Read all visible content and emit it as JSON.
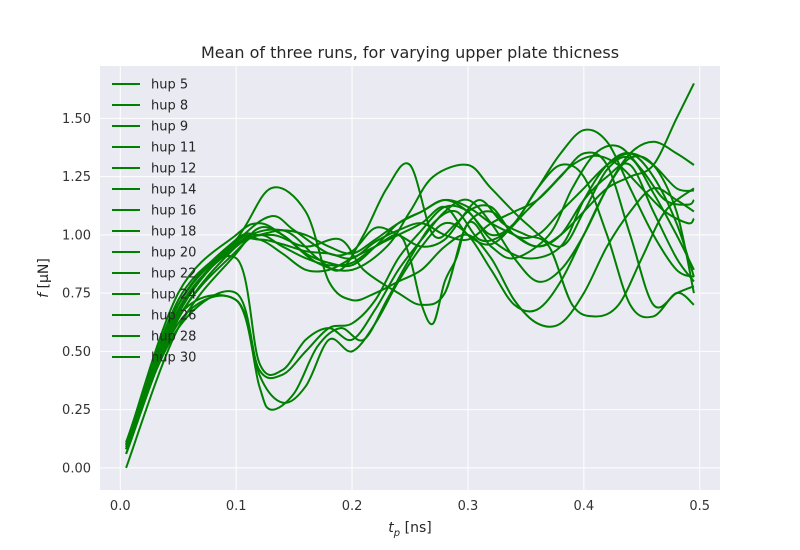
{
  "chart_data": {
    "type": "line",
    "title": "Mean of three runs, for varying upper plate thicness",
    "xlabel_main": "t",
    "xlabel_sub": "p",
    "xlabel_unit": " [ns]",
    "ylabel_var": "f",
    "ylabel_unit": " [μN]",
    "xlim": [
      -0.0175,
      0.5175
    ],
    "ylim": [
      -0.095,
      1.725
    ],
    "x_ticks": [
      0.0,
      0.1,
      0.2,
      0.3,
      0.4,
      0.5
    ],
    "x_tick_labels": [
      "0.0",
      "0.1",
      "0.2",
      "0.3",
      "0.4",
      "0.5"
    ],
    "y_ticks": [
      0.0,
      0.25,
      0.5,
      0.75,
      1.0,
      1.25,
      1.5
    ],
    "y_tick_labels": [
      "0.00",
      "0.25",
      "0.50",
      "0.75",
      "1.00",
      "1.25",
      "1.50"
    ],
    "grid": true,
    "legend_position": "upper-left",
    "colors": {
      "series": "#008000",
      "plot_bg": "#eaeaf2",
      "grid": "#ffffff"
    },
    "series": [
      {
        "name": "hup 5",
        "x": [
          0.005,
          0.05,
          0.1,
          0.12,
          0.14,
          0.17,
          0.2,
          0.23,
          0.25,
          0.27,
          0.3,
          0.32,
          0.35,
          0.38,
          0.4,
          0.42,
          0.44,
          0.46,
          0.48,
          0.495
        ],
        "y": [
          0.1,
          0.75,
          1.0,
          1.05,
          1.0,
          0.88,
          0.85,
          0.95,
          1.1,
          1.25,
          1.3,
          1.2,
          1.05,
          0.95,
          1.1,
          1.28,
          1.33,
          1.18,
          1.0,
          0.85
        ]
      },
      {
        "name": "hup 8",
        "x": [
          0.005,
          0.05,
          0.1,
          0.12,
          0.14,
          0.16,
          0.18,
          0.2,
          0.22,
          0.24,
          0.26,
          0.28,
          0.3,
          0.32,
          0.35,
          0.38,
          0.4,
          0.42,
          0.44,
          0.46,
          0.48,
          0.495
        ],
        "y": [
          0.1,
          0.65,
          0.72,
          0.42,
          0.4,
          0.5,
          0.6,
          0.62,
          0.72,
          0.9,
          1.02,
          1.12,
          1.1,
          0.98,
          0.9,
          0.95,
          1.15,
          1.3,
          1.35,
          1.25,
          1.05,
          0.82
        ]
      },
      {
        "name": "hup 9",
        "x": [
          0.005,
          0.05,
          0.1,
          0.12,
          0.14,
          0.16,
          0.18,
          0.2,
          0.22,
          0.24,
          0.26,
          0.28,
          0.3,
          0.32,
          0.34,
          0.36,
          0.38,
          0.4,
          0.42,
          0.44,
          0.46,
          0.48,
          0.495
        ],
        "y": [
          0.1,
          0.6,
          0.75,
          0.4,
          0.28,
          0.35,
          0.55,
          0.5,
          0.62,
          0.8,
          0.95,
          1.05,
          1.0,
          0.85,
          0.7,
          0.68,
          0.8,
          1.0,
          1.2,
          1.33,
          1.3,
          1.1,
          0.75
        ]
      },
      {
        "name": "hup 11",
        "x": [
          0.005,
          0.05,
          0.1,
          0.12,
          0.14,
          0.16,
          0.18,
          0.2,
          0.22,
          0.24,
          0.26,
          0.28,
          0.3,
          0.32,
          0.34,
          0.36,
          0.38,
          0.4,
          0.42,
          0.44,
          0.46,
          0.48,
          0.495
        ],
        "y": [
          0.11,
          0.7,
          0.9,
          0.45,
          0.42,
          0.55,
          0.6,
          0.55,
          0.68,
          0.85,
          0.98,
          1.1,
          1.15,
          1.05,
          0.9,
          0.8,
          0.85,
          1.0,
          1.2,
          1.35,
          1.4,
          1.35,
          1.3
        ]
      },
      {
        "name": "hup 12",
        "x": [
          0.005,
          0.05,
          0.1,
          0.12,
          0.13,
          0.15,
          0.17,
          0.19,
          0.21,
          0.23,
          0.25,
          0.27,
          0.29,
          0.31,
          0.33,
          0.35,
          0.37,
          0.39,
          0.41,
          0.43,
          0.45,
          0.47,
          0.49,
          0.495
        ],
        "y": [
          0.06,
          0.62,
          0.72,
          0.35,
          0.25,
          0.32,
          0.52,
          0.6,
          0.55,
          0.72,
          0.9,
          1.05,
          1.1,
          0.98,
          1.0,
          1.1,
          1.2,
          1.3,
          1.34,
          1.3,
          1.2,
          1.1,
          1.05,
          1.07
        ]
      },
      {
        "name": "hup 14",
        "x": [
          0.005,
          0.05,
          0.1,
          0.13,
          0.16,
          0.19,
          0.21,
          0.24,
          0.26,
          0.28,
          0.3,
          0.32,
          0.34,
          0.37,
          0.39,
          0.41,
          0.43,
          0.45,
          0.47,
          0.49,
          0.495
        ],
        "y": [
          0.08,
          0.68,
          0.95,
          1.0,
          0.95,
          0.98,
          0.85,
          0.75,
          0.7,
          0.75,
          1.05,
          0.95,
          0.9,
          1.0,
          1.2,
          1.35,
          1.38,
          1.28,
          1.15,
          1.13,
          1.15
        ]
      },
      {
        "name": "hup 16",
        "x": [
          0.005,
          0.05,
          0.1,
          0.13,
          0.15,
          0.18,
          0.2,
          0.22,
          0.24,
          0.26,
          0.28,
          0.3,
          0.32,
          0.34,
          0.36,
          0.38,
          0.4,
          0.42,
          0.44,
          0.46,
          0.48,
          0.495
        ],
        "y": [
          0.09,
          0.7,
          0.97,
          1.08,
          1.02,
          0.92,
          0.93,
          1.03,
          1.0,
          0.95,
          0.98,
          1.1,
          1.12,
          1.0,
          1.0,
          1.1,
          1.2,
          1.3,
          1.35,
          1.3,
          1.2,
          1.19
        ]
      },
      {
        "name": "hup 18",
        "x": [
          0.005,
          0.05,
          0.1,
          0.13,
          0.16,
          0.18,
          0.2,
          0.22,
          0.24,
          0.26,
          0.28,
          0.3,
          0.32,
          0.34,
          0.36,
          0.38,
          0.4,
          0.42,
          0.44,
          0.46,
          0.48,
          0.495
        ],
        "y": [
          0.1,
          0.72,
          0.98,
          1.2,
          1.1,
          0.8,
          0.72,
          0.75,
          0.8,
          0.85,
          0.95,
          1.0,
          0.9,
          0.72,
          0.62,
          0.62,
          0.75,
          0.95,
          1.1,
          1.2,
          1.15,
          1.1
        ]
      },
      {
        "name": "hup 20",
        "x": [
          0.005,
          0.05,
          0.1,
          0.12,
          0.14,
          0.16,
          0.18,
          0.2,
          0.22,
          0.24,
          0.26,
          0.28,
          0.3,
          0.32,
          0.34,
          0.36,
          0.38,
          0.4,
          0.42,
          0.44,
          0.46,
          0.48,
          0.495
        ],
        "y": [
          0.06,
          0.64,
          0.93,
          1.0,
          0.95,
          0.9,
          0.87,
          0.88,
          0.95,
          1.0,
          1.05,
          1.12,
          1.0,
          0.96,
          1.05,
          1.2,
          1.35,
          1.45,
          1.4,
          1.2,
          1.0,
          0.85,
          0.82
        ]
      },
      {
        "name": "hup 22",
        "x": [
          0.005,
          0.05,
          0.1,
          0.12,
          0.14,
          0.16,
          0.18,
          0.2,
          0.22,
          0.24,
          0.26,
          0.28,
          0.3,
          0.32,
          0.34,
          0.36,
          0.38,
          0.4,
          0.42,
          0.44,
          0.46,
          0.48,
          0.495
        ],
        "y": [
          0.0,
          0.6,
          0.92,
          1.03,
          1.0,
          0.92,
          0.88,
          0.87,
          0.95,
          1.05,
          1.1,
          1.15,
          1.1,
          1.0,
          1.05,
          1.2,
          1.3,
          1.25,
          1.0,
          0.7,
          0.65,
          0.75,
          0.7
        ]
      },
      {
        "name": "hup 24",
        "x": [
          0.005,
          0.05,
          0.1,
          0.14,
          0.17,
          0.19,
          0.21,
          0.23,
          0.25,
          0.27,
          0.29,
          0.31,
          0.33,
          0.35,
          0.37,
          0.39,
          0.41,
          0.43,
          0.45,
          0.47,
          0.495
        ],
        "y": [
          0.08,
          0.66,
          0.96,
          1.02,
          0.9,
          0.85,
          1.0,
          1.2,
          1.3,
          1.0,
          1.05,
          1.15,
          1.05,
          1.0,
          0.95,
          0.7,
          0.65,
          0.7,
          0.9,
          1.1,
          1.2
        ]
      },
      {
        "name": "hup 26",
        "x": [
          0.005,
          0.05,
          0.1,
          0.12,
          0.14,
          0.16,
          0.18,
          0.2,
          0.22,
          0.24,
          0.26,
          0.28,
          0.3,
          0.32,
          0.34,
          0.36,
          0.38,
          0.4,
          0.42,
          0.44,
          0.46,
          0.48,
          0.495
        ],
        "y": [
          0.08,
          0.64,
          0.95,
          0.98,
          0.96,
          0.93,
          0.92,
          0.9,
          0.97,
          1.02,
          1.05,
          1.0,
          0.98,
          1.05,
          1.1,
          1.15,
          1.25,
          1.35,
          1.3,
          1.0,
          0.7,
          0.75,
          0.78
        ]
      },
      {
        "name": "hup 28",
        "x": [
          0.005,
          0.05,
          0.1,
          0.12,
          0.14,
          0.16,
          0.18,
          0.2,
          0.22,
          0.24,
          0.25,
          0.26,
          0.27,
          0.28,
          0.29,
          0.3,
          0.32,
          0.34,
          0.36,
          0.38,
          0.4,
          0.42,
          0.44,
          0.46,
          0.48,
          0.495
        ],
        "y": [
          0.09,
          0.67,
          0.97,
          0.98,
          0.92,
          0.85,
          0.85,
          0.9,
          0.95,
          1.0,
          0.9,
          0.7,
          0.62,
          0.8,
          0.9,
          1.05,
          1.1,
          1.0,
          0.95,
          1.0,
          1.15,
          1.25,
          1.3,
          1.1,
          0.9,
          0.8
        ]
      },
      {
        "name": "hup 30",
        "x": [
          0.005,
          0.05,
          0.1,
          0.12,
          0.14,
          0.16,
          0.18,
          0.2,
          0.22,
          0.24,
          0.26,
          0.28,
          0.3,
          0.32,
          0.34,
          0.36,
          0.38,
          0.4,
          0.42,
          0.44,
          0.46,
          0.48,
          0.495
        ],
        "y": [
          0.1,
          0.7,
          0.98,
          1.0,
          1.02,
          1.0,
          0.95,
          0.92,
          0.98,
          1.05,
          1.1,
          1.15,
          1.12,
          1.05,
          1.0,
          0.95,
          1.0,
          1.1,
          1.2,
          1.25,
          1.3,
          1.5,
          1.65
        ]
      }
    ]
  }
}
